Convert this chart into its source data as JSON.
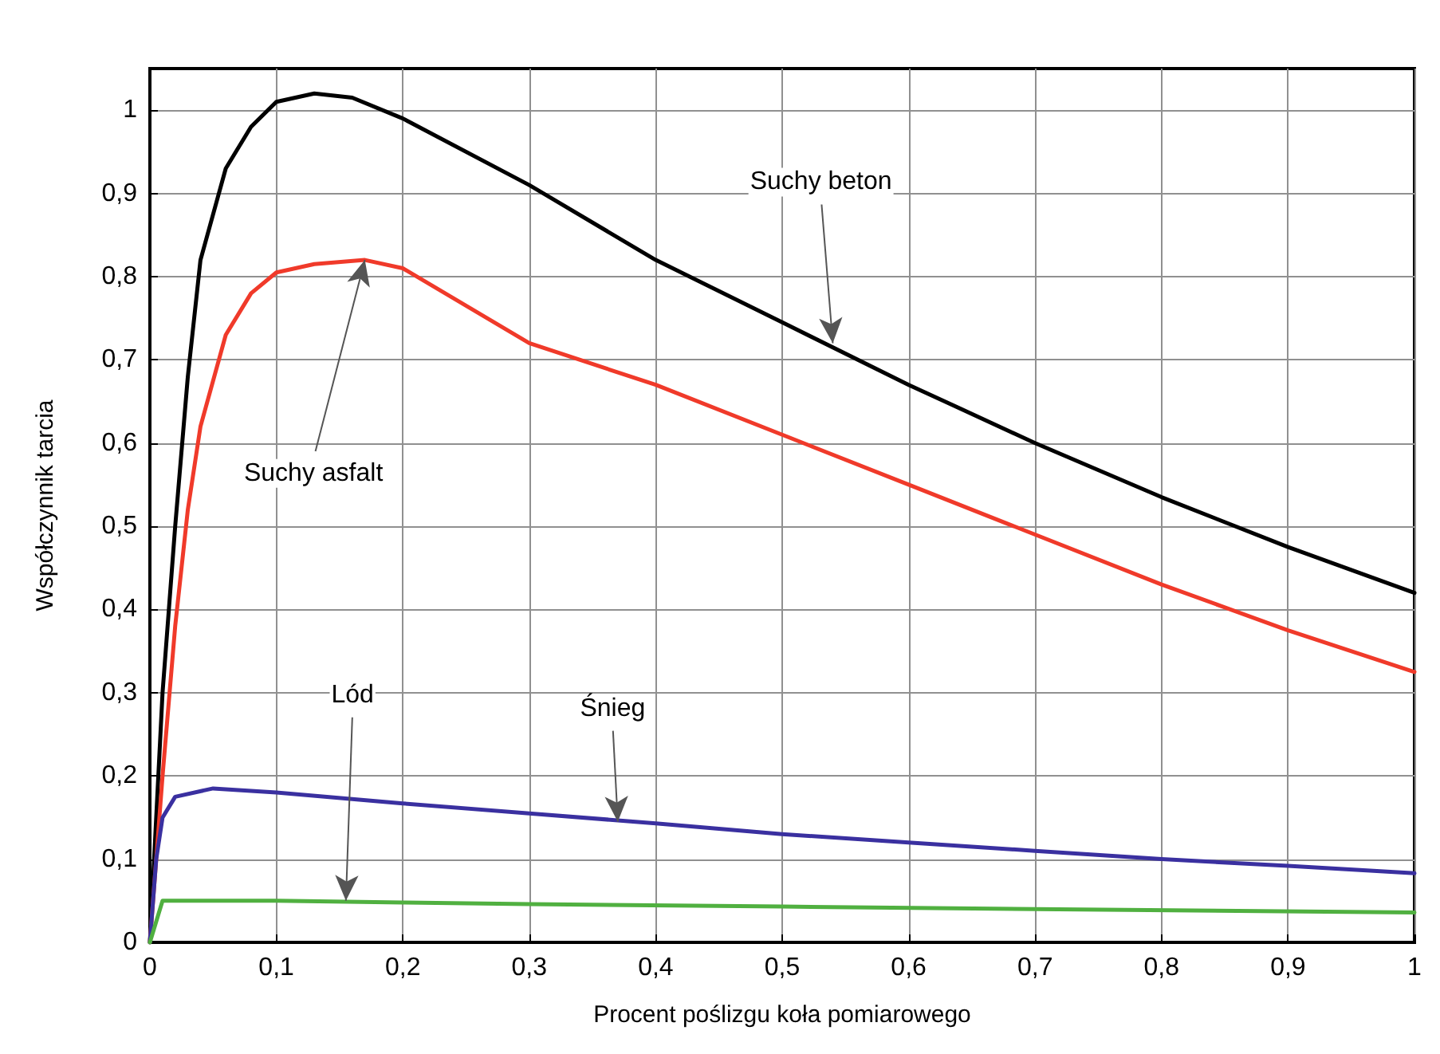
{
  "chart_data": {
    "type": "line",
    "xlabel": "Procent poślizgu koła pomiarowego",
    "ylabel": "Współczynnik tarcia",
    "xlim": [
      0,
      1
    ],
    "ylim": [
      0,
      1.05
    ],
    "grid": true,
    "marker": "none",
    "line_style": "solid",
    "xticks": [
      0,
      {
        "value": 0.1,
        "label": "0,1"
      },
      {
        "value": 0.2,
        "label": "0,2"
      },
      {
        "value": 0.3,
        "label": "0,3"
      },
      {
        "value": 0.4,
        "label": "0,4"
      },
      {
        "value": 0.5,
        "label": "0,5"
      },
      {
        "value": 0.6,
        "label": "0,6"
      },
      {
        "value": 0.7,
        "label": "0,7"
      },
      {
        "value": 0.8,
        "label": "0,8"
      },
      {
        "value": 0.9,
        "label": "0,9"
      },
      1
    ],
    "yticks": [
      0,
      {
        "value": 0.1,
        "label": "0,1"
      },
      {
        "value": 0.2,
        "label": "0,2"
      },
      {
        "value": 0.3,
        "label": "0,3"
      },
      {
        "value": 0.4,
        "label": "0,4"
      },
      {
        "value": 0.5,
        "label": "0,5"
      },
      {
        "value": 0.6,
        "label": "0,6"
      },
      {
        "value": 0.7,
        "label": "0,7"
      },
      {
        "value": 0.8,
        "label": "0,8"
      },
      {
        "value": 0.9,
        "label": "0,9"
      },
      1
    ],
    "series": [
      {
        "color": "#000000",
        "x": [
          0,
          0.01,
          0.02,
          0.03,
          0.04,
          0.06,
          0.08,
          0.1,
          0.13,
          0.16,
          0.2,
          0.3,
          0.4,
          0.5,
          0.6,
          0.7,
          0.8,
          0.9,
          1
        ],
        "values": [
          0,
          0.3,
          0.5,
          0.68,
          0.82,
          0.93,
          0.98,
          1.01,
          1.02,
          1.015,
          0.99,
          0.91,
          0.82,
          0.745,
          0.67,
          0.6,
          0.535,
          0.475,
          0.42
        ]
      },
      {
        "color": "#f03a2a",
        "x": [
          0,
          0.01,
          0.02,
          0.03,
          0.04,
          0.06,
          0.08,
          0.1,
          0.13,
          0.17,
          0.2,
          0.3,
          0.4,
          0.5,
          0.6,
          0.7,
          0.8,
          0.9,
          1
        ],
        "values": [
          0,
          0.2,
          0.38,
          0.52,
          0.62,
          0.73,
          0.78,
          0.805,
          0.815,
          0.82,
          0.81,
          0.72,
          0.67,
          0.61,
          0.55,
          0.49,
          0.43,
          0.375,
          0.325
        ]
      },
      {
        "color": "#3a30a0",
        "x": [
          0,
          0.005,
          0.01,
          0.02,
          0.05,
          0.1,
          0.2,
          0.3,
          0.4,
          0.5,
          0.6,
          0.7,
          0.8,
          0.9,
          1
        ],
        "values": [
          0,
          0.1,
          0.15,
          0.175,
          0.185,
          0.18,
          0.167,
          0.155,
          0.143,
          0.13,
          0.12,
          0.11,
          0.1,
          0.092,
          0.083
        ]
      },
      {
        "color": "#50b040",
        "x": [
          0,
          0.01,
          0.1,
          0.2,
          0.3,
          0.5,
          0.7,
          1
        ],
        "values": [
          0,
          0.05,
          0.05,
          0.048,
          0.046,
          0.043,
          0.04,
          0.036
        ]
      }
    ],
    "annotations": [
      {
        "text": "Suchy beton",
        "x": 0.54,
        "y": 0.72
      },
      {
        "text": "Suchy asfalt",
        "x": 0.17,
        "y": 0.82
      },
      {
        "text": "Śnieg",
        "x": 0.37,
        "y": 0.145
      },
      {
        "text": "Lód",
        "x": 0.155,
        "y": 0.05
      }
    ]
  }
}
